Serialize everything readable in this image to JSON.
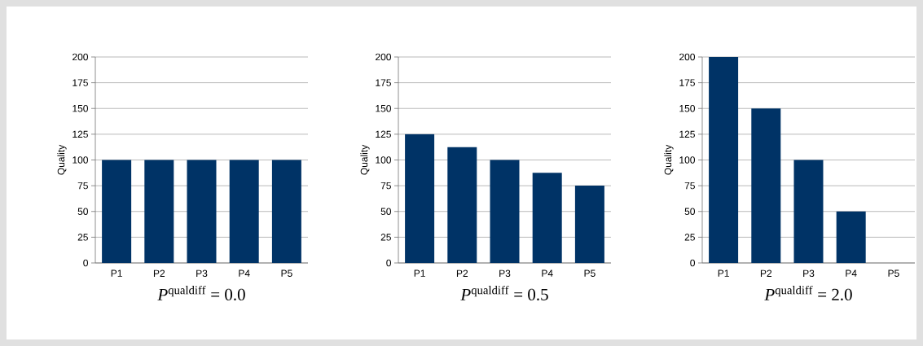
{
  "chart_data": [
    {
      "type": "bar",
      "categories": [
        "P1",
        "P2",
        "P3",
        "P4",
        "P5"
      ],
      "values": [
        100,
        100,
        100,
        100,
        100
      ],
      "color": "#003366",
      "ylim": [
        0,
        200
      ],
      "yticks": [
        0,
        25,
        50,
        75,
        100,
        125,
        150,
        175,
        200
      ],
      "ylabel": "Quality",
      "xlabel": "*P*$^{qualdiff}$ = 0.0",
      "grid": "y"
    },
    {
      "type": "bar",
      "categories": [
        "P1",
        "P2",
        "P3",
        "P4",
        "P5"
      ],
      "values": [
        125,
        112.5,
        100,
        87.5,
        75
      ],
      "color": "#003366",
      "ylim": [
        0,
        200
      ],
      "yticks": [
        0,
        25,
        50,
        75,
        100,
        125,
        150,
        175,
        200
      ],
      "ylabel": "Quality",
      "xlabel": "*P*$^{qualdiff}$ = 0.5",
      "grid": "y"
    },
    {
      "type": "bar",
      "categories": [
        "P1",
        "P2",
        "P3",
        "P4",
        "P5"
      ],
      "values": [
        200,
        150,
        100,
        50,
        0
      ],
      "color": "#003366",
      "ylim": [
        0,
        200
      ],
      "yticks": [
        0,
        25,
        50,
        75,
        100,
        125,
        150,
        175,
        200
      ],
      "ylabel": "Quality",
      "xlabel": "*P*$^{qualdiff}$ = 2.0",
      "grid": "y"
    }
  ]
}
